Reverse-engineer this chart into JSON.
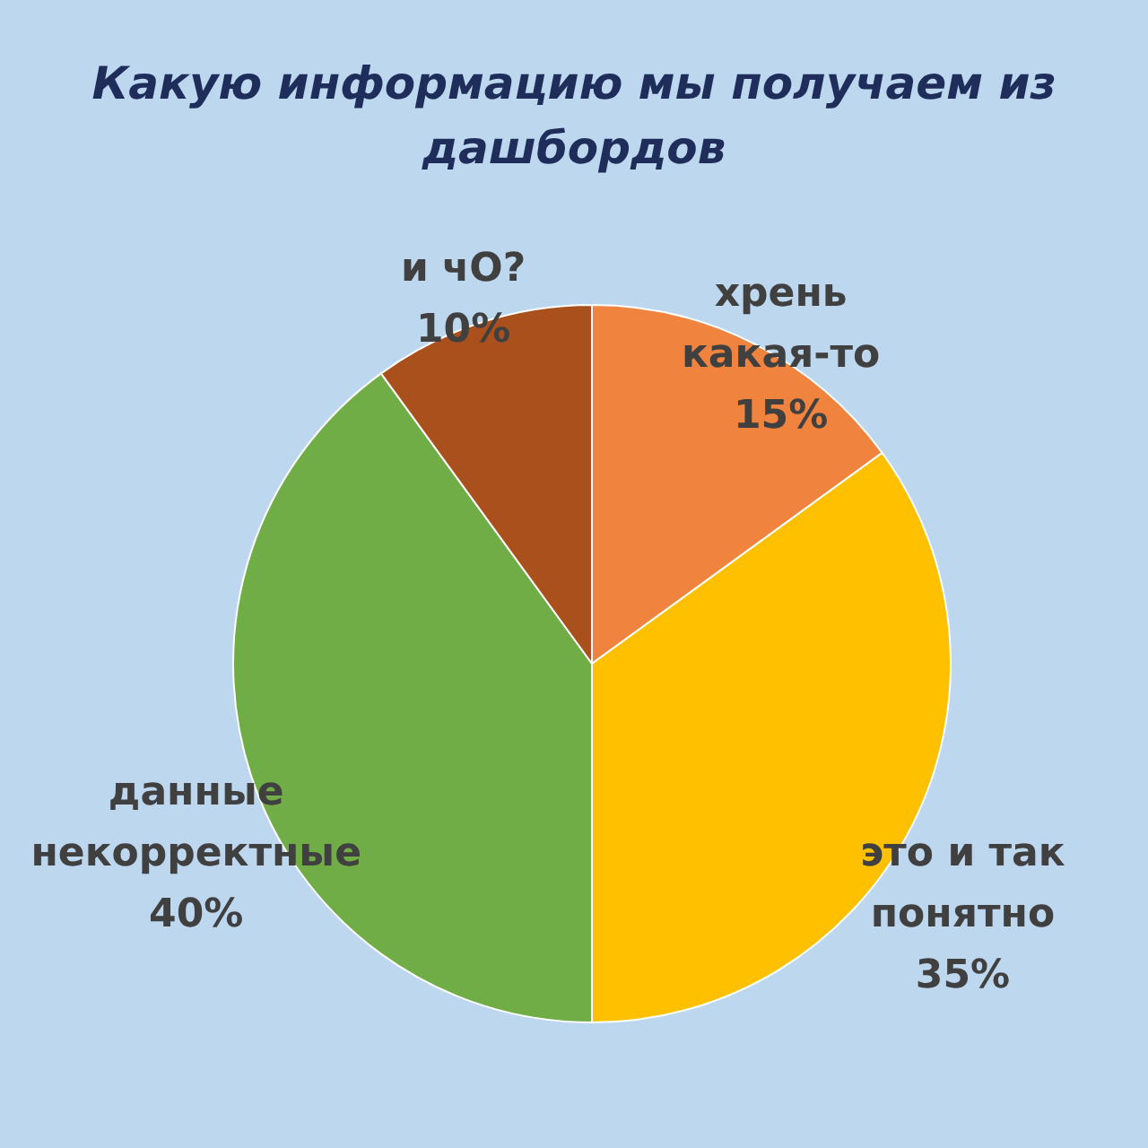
{
  "chart_data": {
    "type": "pie",
    "title": "Какую информацию мы получаем из дашбордов",
    "categories": [
      "хрень какая-то",
      "это и так понятно",
      "данные некорректные",
      "и чО?"
    ],
    "values": [
      15,
      35,
      40,
      10
    ],
    "colors": [
      "#f0843f",
      "#ffc000",
      "#70ad47",
      "#a9501c"
    ],
    "value_labels": [
      "15%",
      "35%",
      "40%",
      "10%"
    ]
  }
}
